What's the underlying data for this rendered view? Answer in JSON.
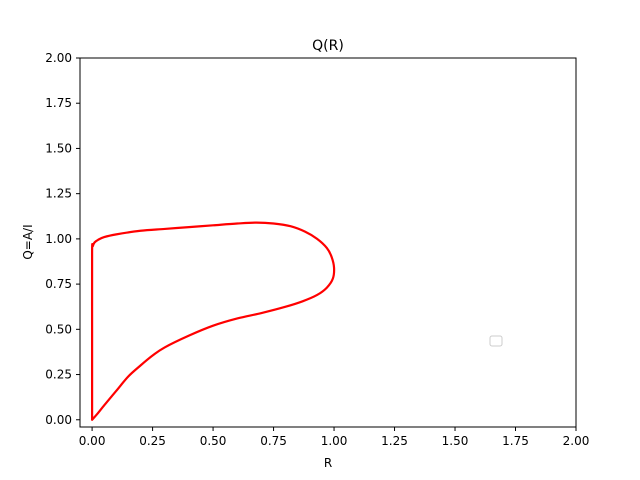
{
  "chart_data": {
    "type": "line",
    "title": "Q(R)",
    "xlabel": "R",
    "ylabel": "Q=A/I",
    "xlim": [
      -0.05,
      2.0
    ],
    "ylim": [
      -0.04,
      2.0
    ],
    "xticks": [
      0.0,
      0.25,
      0.5,
      0.75,
      1.0,
      1.25,
      1.5,
      1.75,
      2.0
    ],
    "xtick_labels": [
      "0.00",
      "0.25",
      "0.50",
      "0.75",
      "1.00",
      "1.25",
      "1.50",
      "1.75",
      "2.00"
    ],
    "yticks": [
      0.0,
      0.25,
      0.5,
      0.75,
      1.0,
      1.25,
      1.5,
      1.75,
      2.0
    ],
    "ytick_labels": [
      "0.00",
      "0.25",
      "0.50",
      "0.75",
      "1.00",
      "1.25",
      "1.50",
      "1.75",
      "2.00"
    ],
    "grid": false,
    "legend": {
      "placement": "center-right",
      "entries": []
    },
    "series": [
      {
        "name": "Q(R)",
        "color": "#ff0000",
        "x": [
          0.0,
          0.02,
          0.05,
          0.1,
          0.15,
          0.2,
          0.25,
          0.3,
          0.4,
          0.5,
          0.6,
          0.7,
          0.8,
          0.87,
          0.93,
          0.97,
          0.995,
          1.0,
          0.99,
          0.97,
          0.93,
          0.88,
          0.82,
          0.75,
          0.68,
          0.6,
          0.5,
          0.4,
          0.3,
          0.2,
          0.1,
          0.05,
          0.025,
          0.01,
          0.003,
          0.0,
          0.0,
          0.0
        ],
        "y": [
          0.0,
          0.03,
          0.08,
          0.16,
          0.24,
          0.3,
          0.355,
          0.4,
          0.465,
          0.52,
          0.56,
          0.59,
          0.625,
          0.655,
          0.69,
          0.73,
          0.78,
          0.84,
          0.9,
          0.95,
          1.0,
          1.04,
          1.07,
          1.085,
          1.09,
          1.085,
          1.075,
          1.065,
          1.055,
          1.045,
          1.025,
          1.01,
          0.995,
          0.98,
          0.96,
          0.93,
          0.5,
          0.0
        ]
      }
    ]
  }
}
